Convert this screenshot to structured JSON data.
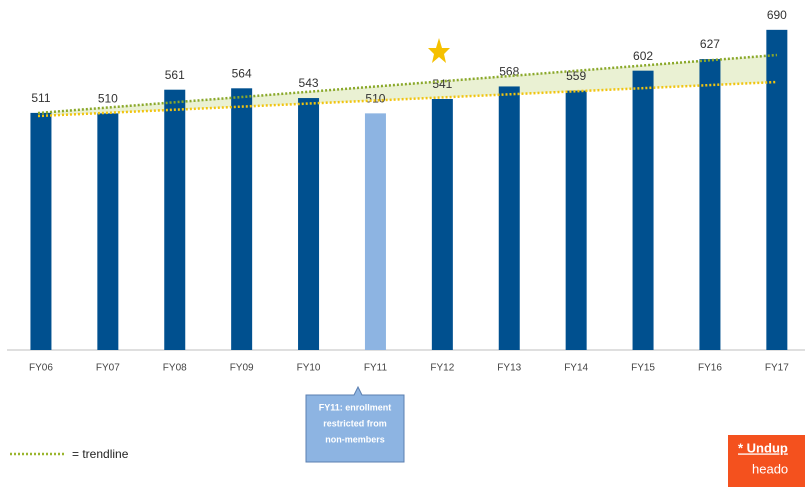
{
  "chart_data": {
    "type": "bar",
    "categories": [
      "FY06",
      "FY07",
      "FY08",
      "FY09",
      "FY10",
      "FY11",
      "FY12",
      "FY13",
      "FY14",
      "FY15",
      "FY16",
      "FY17"
    ],
    "values": [
      511,
      510,
      561,
      564,
      543,
      510,
      541,
      568,
      559,
      602,
      627,
      690
    ],
    "colors": [
      "#00508f",
      "#00508f",
      "#00508f",
      "#00508f",
      "#00508f",
      "#8db4e2",
      "#00508f",
      "#00508f",
      "#00508f",
      "#00508f",
      "#00508f",
      "#00508f"
    ],
    "ylim": [
      0,
      750
    ],
    "callout": [
      "FY11: enrollment",
      "restricted from",
      "non-members"
    ],
    "legend_label": "= trendline",
    "note": [
      "* Undup",
      "heado"
    ]
  }
}
